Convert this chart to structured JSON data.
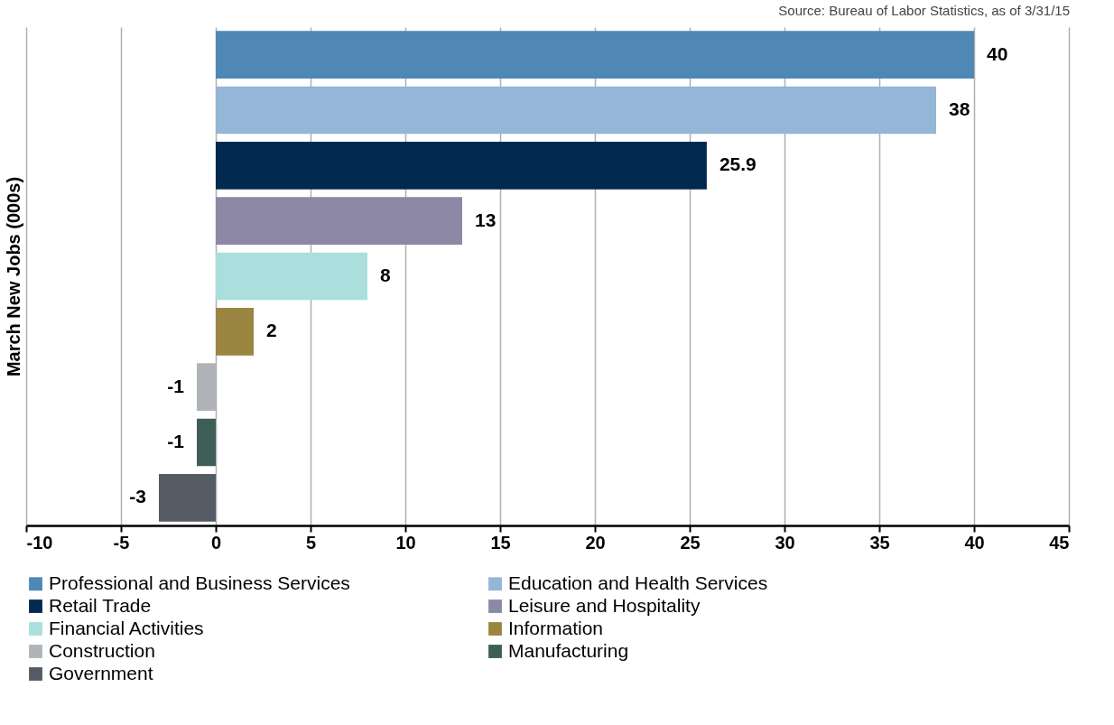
{
  "chart_data": {
    "type": "bar",
    "orientation": "horizontal",
    "ylabel": "March New Jobs (000s)",
    "annotations": [
      "Source: Bureau of Labor Statistics, as of 3/31/15"
    ],
    "categories": [
      null,
      null,
      null,
      null,
      null,
      null,
      null,
      null,
      null
    ],
    "series": [
      {
        "name": "Professional and Business Services",
        "color": "#4f87b5",
        "values": [
          40,
          null,
          null,
          null,
          null,
          null,
          null,
          null,
          null
        ]
      },
      {
        "name": "Education and Health Services",
        "color": "#95b6d6",
        "values": [
          null,
          38,
          null,
          null,
          null,
          null,
          null,
          null,
          null
        ]
      },
      {
        "name": "Retail Trade",
        "color": "#022a50",
        "values": [
          null,
          null,
          25.9,
          null,
          null,
          null,
          null,
          null,
          null
        ]
      },
      {
        "name": "Leisure and Hospitality",
        "color": "#8c88a6",
        "values": [
          null,
          null,
          null,
          13,
          null,
          null,
          null,
          null,
          null
        ]
      },
      {
        "name": "Financial Activities",
        "color": "#aadfdd",
        "values": [
          null,
          null,
          null,
          null,
          8,
          null,
          null,
          null,
          null
        ]
      },
      {
        "name": "Information",
        "color": "#9b8641",
        "values": [
          null,
          null,
          null,
          null,
          null,
          2,
          null,
          null,
          null
        ]
      },
      {
        "name": "Construction",
        "color": "#b0b3b8",
        "values": [
          null,
          null,
          null,
          null,
          null,
          null,
          -1,
          null,
          null
        ]
      },
      {
        "name": "Manufacturing",
        "color": "#3e5f58",
        "values": [
          null,
          null,
          null,
          null,
          null,
          null,
          null,
          -1,
          null
        ]
      },
      {
        "name": "Government",
        "color": "#545b64",
        "values": [
          null,
          null,
          null,
          null,
          null,
          null,
          null,
          null,
          -3
        ]
      }
    ],
    "xlim": [
      -10,
      45
    ],
    "xticks": [
      -10,
      -5,
      0,
      5,
      10,
      15,
      20,
      25,
      30,
      35,
      40,
      45
    ],
    "grid": "x",
    "legend": "bottom",
    "tick_labels": "x",
    "data_labels": true
  }
}
